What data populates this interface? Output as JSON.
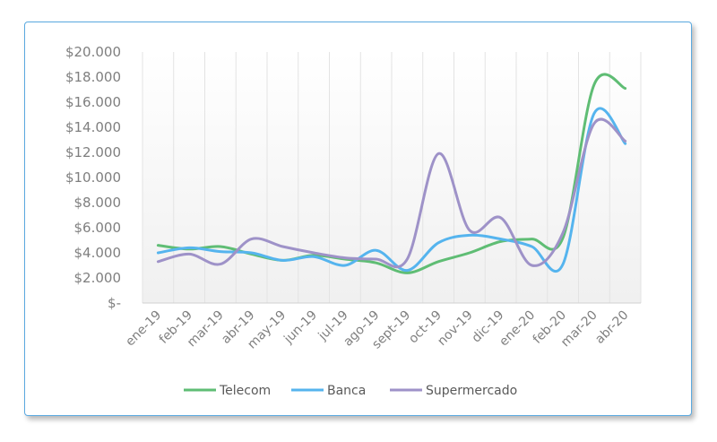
{
  "chart_data": {
    "type": "line",
    "title": "",
    "xlabel": "",
    "ylabel": "",
    "categories": [
      "ene-19",
      "feb-19",
      "mar-19",
      "abr-19",
      "may-19",
      "jun-19",
      "jul-19",
      "ago-19",
      "sept-19",
      "oct-19",
      "nov-19",
      "dic-19",
      "ene-20",
      "feb-20",
      "mar-20",
      "abr-20"
    ],
    "y_ticks": [
      "$-",
      "$2.000",
      "$4.000",
      "$6.000",
      "$8.000",
      "$10.000",
      "$12.000",
      "$14.000",
      "$16.000",
      "$18.000",
      "$20.000"
    ],
    "ylim": [
      0,
      20000
    ],
    "grid": "vertical",
    "legend_position": "bottom",
    "series": [
      {
        "name": "Telecom",
        "color": "#5fbd74",
        "values": [
          4600,
          4300,
          4500,
          3900,
          3400,
          3800,
          3500,
          3200,
          2400,
          3300,
          4000,
          4900,
          5100,
          5200,
          17400,
          17100
        ]
      },
      {
        "name": "Banca",
        "color": "#55b4ee",
        "values": [
          4000,
          4400,
          4100,
          4000,
          3400,
          3700,
          3000,
          4200,
          2600,
          4800,
          5400,
          5100,
          4500,
          3100,
          15100,
          12700
        ]
      },
      {
        "name": "Supermercado",
        "color": "#9e92c8",
        "values": [
          3300,
          3900,
          3100,
          5100,
          4500,
          4000,
          3600,
          3500,
          3500,
          11900,
          5800,
          6800,
          3000,
          5600,
          14300,
          12900
        ]
      }
    ]
  }
}
